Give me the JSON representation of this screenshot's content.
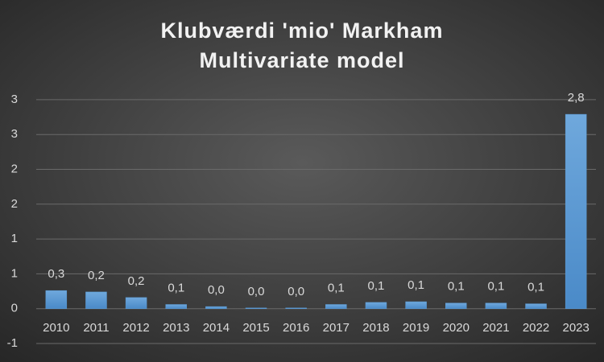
{
  "chart_data": {
    "type": "bar",
    "title": [
      "Klubværdi 'mio' Markham",
      "Multivariate model"
    ],
    "categories": [
      "2010",
      "2011",
      "2012",
      "2013",
      "2014",
      "2015",
      "2016",
      "2017",
      "2018",
      "2019",
      "2020",
      "2021",
      "2022",
      "2023"
    ],
    "values": [
      0.26,
      0.24,
      0.16,
      0.06,
      0.03,
      0.01,
      0.01,
      0.06,
      0.09,
      0.1,
      0.08,
      0.08,
      0.07,
      2.79
    ],
    "value_labels": [
      "0,3",
      "0,2",
      "0,2",
      "0,1",
      "0,0",
      "0,0",
      "0,0",
      "0,1",
      "0,1",
      "0,1",
      "0,1",
      "0,1",
      "0,1",
      "2,8"
    ],
    "color": "#5b9bd5",
    "ylim": [
      -0.5,
      3.5
    ],
    "yticks": [
      {
        "value": -0.5,
        "label": "-1"
      },
      {
        "value": 0,
        "label": "0"
      },
      {
        "value": 0.5,
        "label": "1"
      },
      {
        "value": 1,
        "label": "1"
      },
      {
        "value": 1.5,
        "label": "2"
      },
      {
        "value": 2,
        "label": "2"
      },
      {
        "value": 2.5,
        "label": "3"
      },
      {
        "value": 3,
        "label": "3"
      }
    ],
    "grid": true
  }
}
